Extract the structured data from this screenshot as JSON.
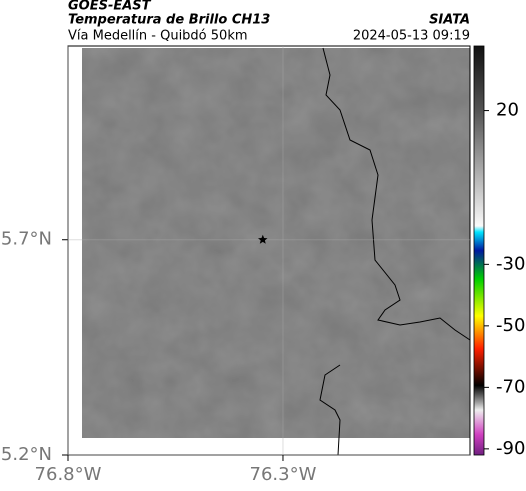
{
  "map": {
    "title": "GOES-EAST",
    "subtitle": "Temperatura de Brillo CH13",
    "caption": "Vía Medellín - Quibdó 50km",
    "source": "SIATA",
    "timestamp": "2024-05-13 09:19",
    "xlim": [
      -76.8,
      -75.865
    ],
    "ylim": [
      5.2,
      6.15
    ],
    "xticks": [
      {
        "value": -76.8,
        "label": "76.8°W"
      },
      {
        "value": -76.3,
        "label": "76.3°W"
      }
    ],
    "yticks": [
      {
        "value": 5.2,
        "label": "5.2°N"
      },
      {
        "value": 5.7,
        "label": "5.7°N"
      }
    ],
    "grid": true,
    "marker": {
      "lon": -76.347,
      "lat": 5.7
    },
    "colorbar": {
      "clim": [
        -92,
        41
      ],
      "ticks": [
        20,
        -30,
        -50,
        -70,
        -90
      ]
    }
  }
}
